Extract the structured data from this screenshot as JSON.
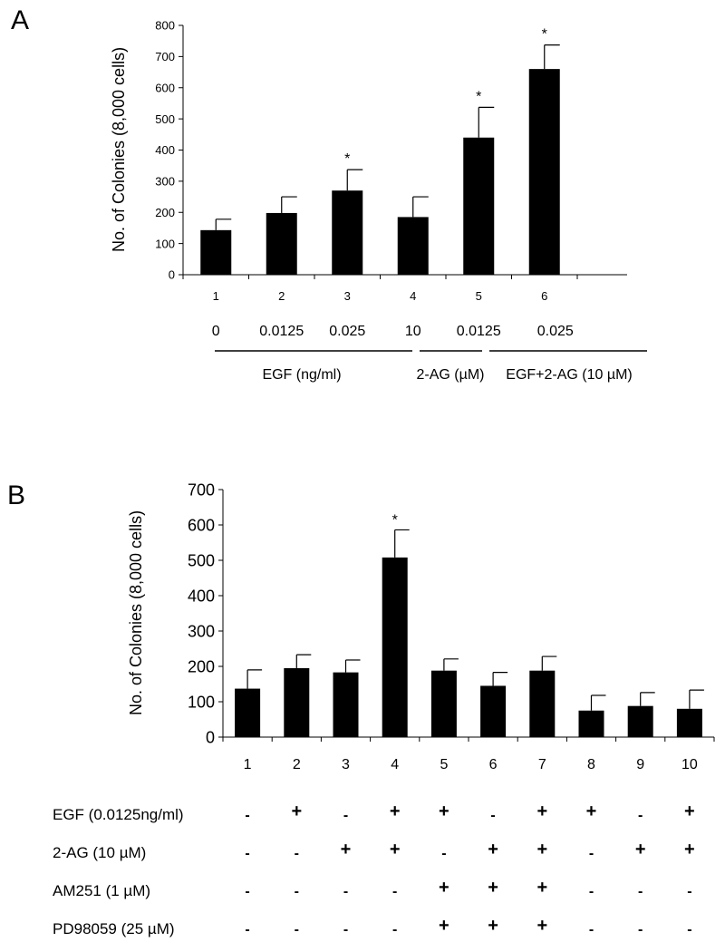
{
  "chart_data": [
    {
      "panel": "A",
      "type": "bar",
      "ylabel": "No. of Colonies (8,000 cells)",
      "ylim": [
        0,
        800
      ],
      "yticks": [
        0,
        100,
        200,
        300,
        400,
        500,
        600,
        700,
        800
      ],
      "categories": [
        "1",
        "2",
        "3",
        "4",
        "5",
        "6"
      ],
      "values": [
        143,
        198,
        270,
        185,
        440,
        660
      ],
      "errors": [
        35,
        52,
        67,
        65,
        97,
        77
      ],
      "significance": [
        "",
        "",
        "*",
        "",
        "*",
        "*"
      ],
      "concentrations": [
        "0",
        "0.0125",
        "0.025",
        "10",
        "0.0125",
        "0.025"
      ],
      "groups": [
        {
          "label": "EGF (ng/ml)",
          "bars": [
            1,
            2,
            3
          ]
        },
        {
          "label": "2-AG (µM)",
          "bars": [
            4
          ]
        },
        {
          "label": "EGF+2-AG (10 µM)",
          "bars": [
            5,
            6
          ]
        }
      ],
      "grid": false,
      "bar_color": "#000000"
    },
    {
      "panel": "B",
      "type": "bar",
      "ylabel": "No. of Colonies (8,000 cells)",
      "ylim": [
        0,
        700
      ],
      "yticks": [
        0,
        100,
        200,
        300,
        400,
        500,
        600,
        700
      ],
      "categories": [
        "1",
        "2",
        "3",
        "4",
        "5",
        "6",
        "7",
        "8",
        "9",
        "10"
      ],
      "values": [
        137,
        195,
        183,
        508,
        188,
        145,
        188,
        75,
        88,
        80
      ],
      "errors": [
        53,
        38,
        35,
        78,
        33,
        38,
        40,
        43,
        38,
        53
      ],
      "significance": [
        "",
        "",
        "",
        "*",
        "",
        "",
        "",
        "",
        "",
        ""
      ],
      "treatments": [
        {
          "label": "EGF (0.0125ng/ml)",
          "signs": [
            "-",
            "+",
            "-",
            "+",
            "+",
            "-",
            "+",
            "+",
            "-",
            "+"
          ]
        },
        {
          "label": "2-AG (10 µM)",
          "signs": [
            "-",
            "-",
            "+",
            "+",
            "-",
            "+",
            "+",
            "-",
            "+",
            "+"
          ]
        },
        {
          "label": "AM251 (1 µM)",
          "signs": [
            "-",
            "-",
            "-",
            "-",
            "+",
            "+",
            "+",
            "-",
            "-",
            "-"
          ]
        },
        {
          "label": "PD98059 (25 µM)",
          "signs": [
            "-",
            "-",
            "-",
            "-",
            "+",
            "+",
            "+",
            "-",
            "-",
            "-"
          ]
        }
      ],
      "grid": false,
      "bar_color": "#000000"
    }
  ],
  "panel_labels": [
    "A",
    "B"
  ]
}
